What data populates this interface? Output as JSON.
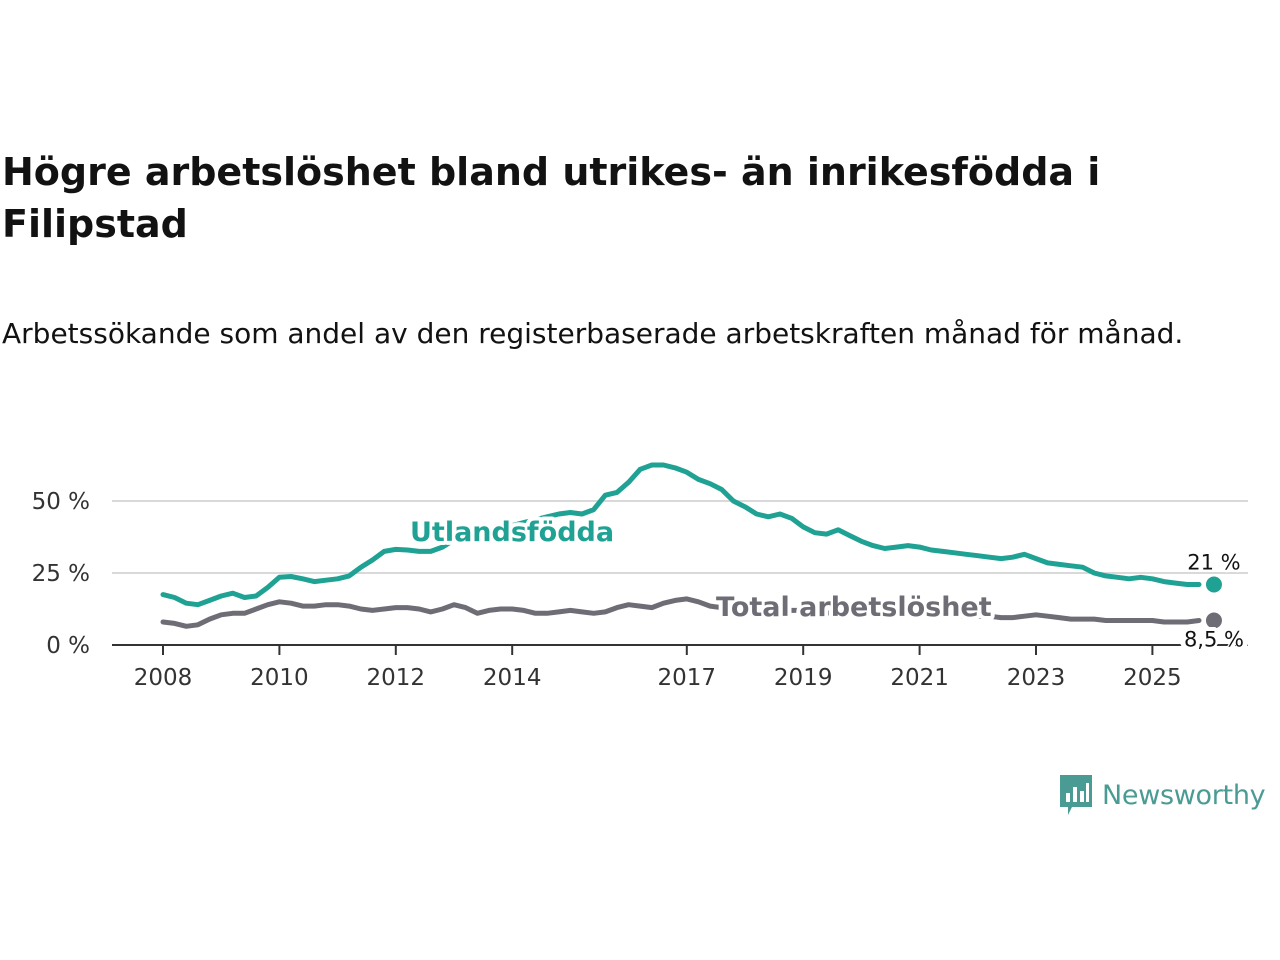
{
  "title": "Högre arbetslöshet bland utrikes- än inrikesfödda i Filipstad",
  "subtitle": "Arbetssökande som andel av den registerbaserade arbetskraften månad för månad.",
  "brand": {
    "name": "Newsworthy",
    "color": "#4a9b93"
  },
  "chart_data": {
    "type": "line",
    "title": "Högre arbetslöshet bland utrikes- än inrikesfödda i Filipstad",
    "subtitle": "Arbetssökande som andel av den registerbaserade arbetskraften månad för månad.",
    "xlabel": "",
    "ylabel": "",
    "xlim": [
      2007.5,
      2026.5
    ],
    "ylim": [
      0,
      65
    ],
    "y_ticks": [
      0,
      25,
      50
    ],
    "y_tick_labels": [
      "0 %",
      "25 %",
      "50 %"
    ],
    "x_ticks": [
      2008,
      2010,
      2012,
      2014,
      2017,
      2019,
      2021,
      2023,
      2025
    ],
    "x_tick_labels": [
      "2008",
      "2010",
      "2012",
      "2014",
      "2017",
      "2019",
      "2021",
      "2023",
      "2025"
    ],
    "grid": true,
    "series": [
      {
        "name": "Utlandsfödda",
        "color": "#1fa293",
        "end_label": "21 %",
        "x": [
          2008.0,
          2008.2,
          2008.4,
          2008.6,
          2008.8,
          2009.0,
          2009.2,
          2009.4,
          2009.6,
          2009.8,
          2010.0,
          2010.2,
          2010.4,
          2010.6,
          2010.8,
          2011.0,
          2011.2,
          2011.4,
          2011.6,
          2011.8,
          2012.0,
          2012.2,
          2012.4,
          2012.6,
          2012.8,
          2013.0,
          2013.2,
          2013.4,
          2013.6,
          2013.8,
          2014.0,
          2014.2,
          2014.4,
          2014.6,
          2014.8,
          2015.0,
          2015.2,
          2015.4,
          2015.6,
          2015.8,
          2016.0,
          2016.2,
          2016.4,
          2016.6,
          2016.8,
          2017.0,
          2017.2,
          2017.4,
          2017.6,
          2017.8,
          2018.0,
          2018.2,
          2018.4,
          2018.6,
          2018.8,
          2019.0,
          2019.2,
          2019.4,
          2019.6,
          2019.8,
          2020.0,
          2020.2,
          2020.4,
          2020.6,
          2020.8,
          2021.0,
          2021.2,
          2021.4,
          2021.6,
          2021.8,
          2022.0,
          2022.2,
          2022.4,
          2022.6,
          2022.8,
          2023.0,
          2023.2,
          2023.4,
          2023.6,
          2023.8,
          2024.0,
          2024.2,
          2024.4,
          2024.6,
          2024.8,
          2025.0,
          2025.2,
          2025.4,
          2025.6,
          2025.8
        ],
        "values": [
          17.5,
          16.5,
          14.5,
          14.0,
          15.5,
          17.0,
          18.0,
          16.5,
          17.0,
          20.0,
          23.5,
          23.8,
          23.0,
          22.0,
          22.5,
          23.0,
          24.0,
          27.0,
          29.5,
          32.5,
          33.2,
          33.0,
          32.5,
          32.5,
          34.0,
          36.5,
          38.5,
          39.5,
          40.5,
          41.0,
          41.5,
          42.5,
          43.5,
          44.5,
          45.5,
          46.0,
          45.5,
          47.0,
          52.0,
          53.0,
          56.5,
          61.0,
          62.5,
          62.5,
          61.5,
          60.0,
          57.5,
          56.0,
          54.0,
          50.0,
          48.0,
          45.5,
          44.5,
          45.5,
          44.0,
          41.0,
          39.0,
          38.5,
          40.0,
          38.0,
          36.0,
          34.5,
          33.5,
          34.0,
          34.5,
          34.0,
          33.0,
          32.5,
          32.0,
          31.5,
          31.0,
          30.5,
          30.0,
          30.5,
          31.5,
          30.0,
          28.5,
          28.0,
          27.5,
          27.0,
          25.0,
          24.0,
          23.5,
          23.0,
          23.5,
          23.0,
          22.0,
          21.5,
          21.0,
          21.0
        ]
      },
      {
        "name": "Total arbetslöshet",
        "color": "#6e6d76",
        "end_label": "8,5 %",
        "x": [
          2008.0,
          2008.2,
          2008.4,
          2008.6,
          2008.8,
          2009.0,
          2009.2,
          2009.4,
          2009.6,
          2009.8,
          2010.0,
          2010.2,
          2010.4,
          2010.6,
          2010.8,
          2011.0,
          2011.2,
          2011.4,
          2011.6,
          2011.8,
          2012.0,
          2012.2,
          2012.4,
          2012.6,
          2012.8,
          2013.0,
          2013.2,
          2013.4,
          2013.6,
          2013.8,
          2014.0,
          2014.2,
          2014.4,
          2014.6,
          2014.8,
          2015.0,
          2015.2,
          2015.4,
          2015.6,
          2015.8,
          2016.0,
          2016.2,
          2016.4,
          2016.6,
          2016.8,
          2017.0,
          2017.2,
          2017.4,
          2017.6,
          2017.8,
          2018.0,
          2018.2,
          2018.4,
          2018.6,
          2018.8,
          2019.0,
          2019.2,
          2019.4,
          2019.6,
          2019.8,
          2020.0,
          2020.2,
          2020.4,
          2020.6,
          2020.8,
          2021.0,
          2021.2,
          2021.4,
          2021.6,
          2021.8,
          2022.0,
          2022.2,
          2022.4,
          2022.6,
          2022.8,
          2023.0,
          2023.2,
          2023.4,
          2023.6,
          2023.8,
          2024.0,
          2024.2,
          2024.4,
          2024.6,
          2024.8,
          2025.0,
          2025.2,
          2025.4,
          2025.6,
          2025.8
        ],
        "values": [
          8.0,
          7.5,
          6.5,
          7.0,
          9.0,
          10.5,
          11.0,
          11.0,
          12.5,
          14.0,
          15.0,
          14.5,
          13.5,
          13.5,
          14.0,
          14.0,
          13.5,
          12.5,
          12.0,
          12.5,
          13.0,
          13.0,
          12.5,
          11.5,
          12.5,
          14.0,
          13.0,
          11.0,
          12.0,
          12.5,
          12.5,
          12.0,
          11.0,
          11.0,
          11.5,
          12.0,
          11.5,
          11.0,
          11.5,
          13.0,
          14.0,
          13.5,
          13.0,
          14.5,
          15.5,
          16.0,
          15.0,
          13.5,
          13.0,
          12.0,
          12.5,
          13.0,
          13.0,
          12.5,
          12.0,
          12.0,
          11.5,
          11.0,
          11.5,
          11.5,
          11.5,
          11.0,
          10.5,
          10.5,
          10.5,
          11.0,
          11.0,
          10.5,
          10.5,
          10.0,
          10.0,
          10.0,
          9.5,
          9.5,
          10.0,
          10.5,
          10.0,
          9.5,
          9.0,
          9.0,
          9.0,
          8.5,
          8.5,
          8.5,
          8.5,
          8.5,
          8.0,
          8.0,
          8.0,
          8.5
        ]
      }
    ]
  }
}
